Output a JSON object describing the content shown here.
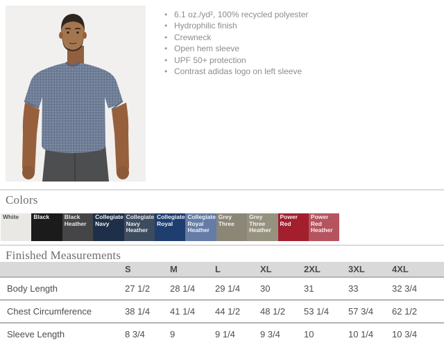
{
  "icons": {
    "bullet": "•"
  },
  "product": {
    "photo_label": "model-wearing-heather-navy-tee",
    "features": [
      "6.1 oz./yd², 100% recycled polyester",
      "Hydrophilic finish",
      "Crewneck",
      "Open hem sleeve",
      "UPF 50+ protection",
      "Contrast adidas logo on left sleeve"
    ]
  },
  "colors_section": {
    "heading": "Colors",
    "swatches": [
      {
        "label": "White",
        "bg": "#e9e8e5",
        "text": "#4f4f4f",
        "heather": false
      },
      {
        "label": "Black",
        "bg": "#1b1b1b",
        "text": "#f3f3f3",
        "heather": false
      },
      {
        "label": "Black Heather",
        "bg": "#454547",
        "text": "#e9e9e9",
        "heather": true
      },
      {
        "label": "Collegiate Navy",
        "bg": "#1e3049",
        "text": "#f3f3f3",
        "heather": false
      },
      {
        "label": "Collegiate Navy Heather",
        "bg": "#3d4b5e",
        "text": "#e9e9e9",
        "heather": true
      },
      {
        "label": "Collegiate Royal",
        "bg": "#1e3e6f",
        "text": "#f3f3f3",
        "heather": false
      },
      {
        "label": "Collegiate Royal Heather",
        "bg": "#647ca6",
        "text": "#eef2f8",
        "heather": true
      },
      {
        "label": "Grey Three",
        "bg": "#8c8677",
        "text": "#f3f3f3",
        "heather": false
      },
      {
        "label": "Grey Three Heather",
        "bg": "#97927f",
        "text": "#f3f3f3",
        "heather": true
      },
      {
        "label": "Power Red",
        "bg": "#a31f2e",
        "text": "#f3f3f3",
        "heather": false
      },
      {
        "label": "Power Red Heather",
        "bg": "#b5545f",
        "text": "#f7eeee",
        "heather": true
      }
    ]
  },
  "measurements_section": {
    "heading": "Finished Measurements",
    "columns": [
      "S",
      "M",
      "L",
      "XL",
      "2XL",
      "3XL",
      "4XL"
    ],
    "rows": [
      {
        "label": "Body Length",
        "values": [
          "27 1/2",
          "28 1/4",
          "29 1/4",
          "30",
          "31",
          "33",
          "32 3/4"
        ]
      },
      {
        "label": "Chest Circumference",
        "values": [
          "38 1/4",
          "41 1/4",
          "44 1/2",
          "48 1/2",
          "53 1/4",
          "57 3/4",
          "62 1/2"
        ]
      },
      {
        "label": "Sleeve Length",
        "values": [
          "8 3/4",
          "9",
          "9 1/4",
          "9 3/4",
          "10",
          "10 1/4",
          "10 3/4"
        ]
      }
    ]
  }
}
